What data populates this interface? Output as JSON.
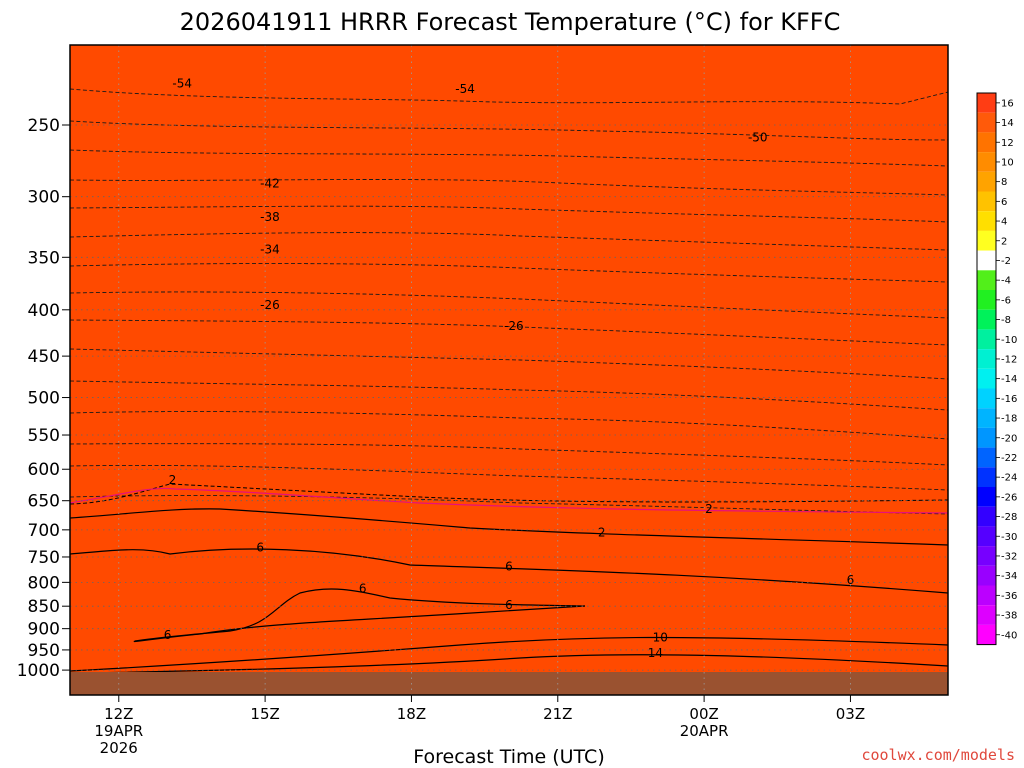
{
  "chart_data": {
    "type": "heatmap",
    "title": "2026041911 HRRR Forecast Temperature (°C) for KFFC",
    "xlabel": "Forecast Time (UTC)",
    "ylabel": "",
    "credit": "coolwx.com/models",
    "x_ticks": [
      {
        "hour": 12,
        "lines": [
          "12Z",
          "19APR",
          "2026"
        ]
      },
      {
        "hour": 15,
        "lines": [
          "15Z"
        ]
      },
      {
        "hour": 18,
        "lines": [
          "18Z"
        ]
      },
      {
        "hour": 21,
        "lines": [
          "21Z"
        ]
      },
      {
        "hour": 24,
        "lines": [
          "00Z",
          "20APR"
        ]
      },
      {
        "hour": 27,
        "lines": [
          "03Z"
        ]
      }
    ],
    "xlim": [
      11,
      29
    ],
    "y_ticks": [
      250,
      300,
      350,
      400,
      450,
      500,
      550,
      600,
      650,
      700,
      750,
      800,
      850,
      900,
      950,
      1000
    ],
    "ylim_hPa": [
      1012,
      200
    ],
    "colorbar_levels": [
      16,
      14,
      12,
      10,
      8,
      6,
      4,
      2,
      -2,
      -4,
      -6,
      -8,
      -10,
      -12,
      -14,
      -16,
      -18,
      -20,
      -22,
      -24,
      -26,
      -28,
      -30,
      -32,
      -34,
      -36,
      -38,
      -40
    ],
    "colorbar_labels": [
      "16",
      "14",
      "12",
      "10",
      "8",
      "6",
      "4",
      "2",
      "-2",
      "-4",
      "-6",
      "-8",
      "-10",
      "-12",
      "-14",
      "-16",
      "-18",
      "-20",
      "-22",
      "-24",
      "-26",
      "-28",
      "-30",
      "-32",
      "-34",
      "-36",
      "-38",
      "-40"
    ],
    "colors": {
      "ground": "#9a5230",
      "cb": [
        "#ff3d14",
        "#ff5a0a",
        "#ff7300",
        "#ff8c00",
        "#ffa300",
        "#ffc200",
        "#ffdf00",
        "#ffff20",
        "#ffffff",
        "#52ef1a",
        "#21f021",
        "#00f25a",
        "#00f09f",
        "#00f0d2",
        "#00f0f0",
        "#00d2ff",
        "#00b4ff",
        "#0096ff",
        "#0064ff",
        "#0032ff",
        "#0000ff",
        "#3300ff",
        "#5500ff",
        "#7700ff",
        "#9900ff",
        "#bb00ff",
        "#dd00ff",
        "#ff00ff"
      ]
    },
    "contour_labels": [
      {
        "text": "-54",
        "hour": 13.3,
        "p": 225
      },
      {
        "text": "-54",
        "hour": 19.1,
        "p": 228
      },
      {
        "text": "-50",
        "hour": 25.1,
        "p": 258
      },
      {
        "text": "-42",
        "hour": 15.1,
        "p": 290
      },
      {
        "text": "-38",
        "hour": 15.1,
        "p": 316
      },
      {
        "text": "-34",
        "hour": 15.1,
        "p": 343
      },
      {
        "text": "-26",
        "hour": 15.1,
        "p": 395
      },
      {
        "text": "-26",
        "hour": 20.1,
        "p": 417
      },
      {
        "text": "2",
        "hour": 13.1,
        "p": 617
      },
      {
        "text": "2",
        "hour": 24.1,
        "p": 664
      },
      {
        "text": "2",
        "hour": 21.9,
        "p": 705
      },
      {
        "text": "6",
        "hour": 14.9,
        "p": 732
      },
      {
        "text": "6",
        "hour": 20.0,
        "p": 768
      },
      {
        "text": "6",
        "hour": 27.0,
        "p": 795
      },
      {
        "text": "6",
        "hour": 17.0,
        "p": 813
      },
      {
        "text": "6",
        "hour": 20.0,
        "p": 847
      },
      {
        "text": "6",
        "hour": 13.0,
        "p": 915
      },
      {
        "text": "10",
        "hour": 23.1,
        "p": 920
      },
      {
        "text": "14",
        "hour": 23.0,
        "p": 957
      }
    ]
  }
}
